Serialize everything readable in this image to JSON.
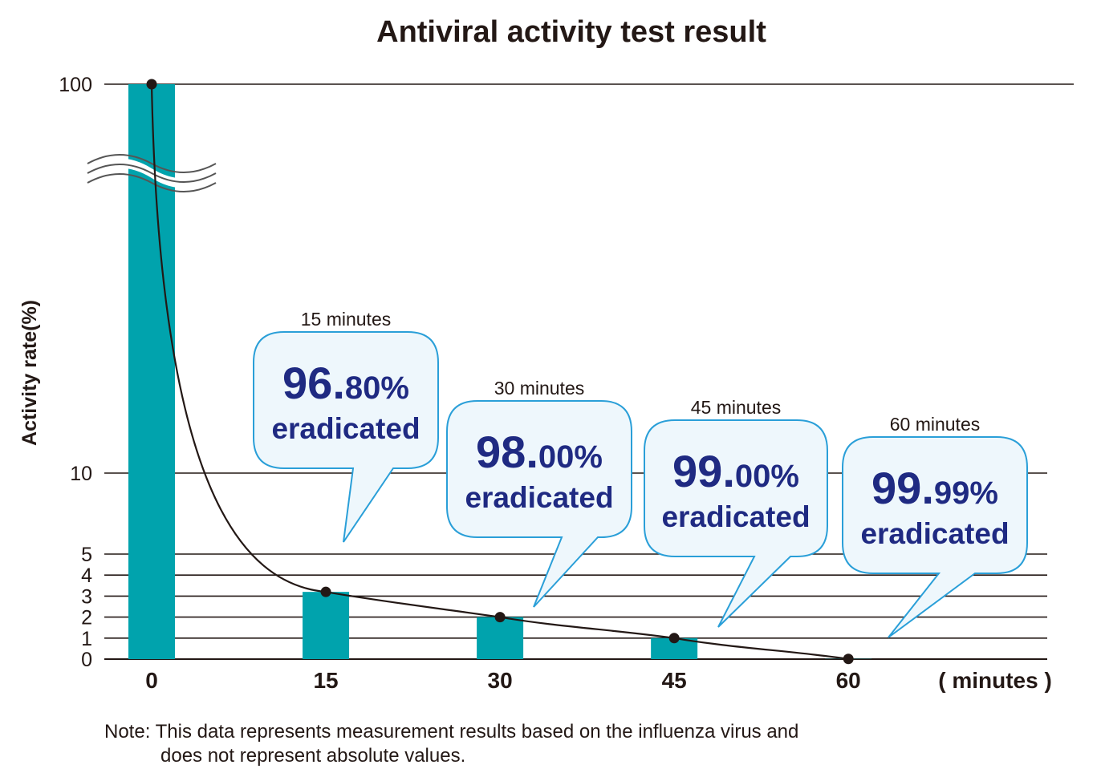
{
  "chart_data": {
    "type": "bar",
    "title": "Antiviral activity test result",
    "ylabel": "Activity rate(%)",
    "xunit_label": "( minutes )",
    "categories": [
      "0",
      "15",
      "30",
      "45",
      "60"
    ],
    "x": [
      0,
      15,
      30,
      45,
      60
    ],
    "values": [
      100,
      3.2,
      2.0,
      1.0,
      0.01
    ],
    "y_ticks": [
      "0",
      "1",
      "2",
      "3",
      "4",
      "5",
      "10",
      "100"
    ],
    "axis_break": true,
    "bar_color": "#00a3ad",
    "line_color": "#231815",
    "callouts": [
      {
        "label": "15 minutes",
        "percent_main": "96.",
        "percent_dec": "80%",
        "text": "eradicated"
      },
      {
        "label": "30 minutes",
        "percent_main": "98.",
        "percent_dec": "00%",
        "text": "eradicated"
      },
      {
        "label": "45 minutes",
        "percent_main": "99.",
        "percent_dec": "00%",
        "text": "eradicated"
      },
      {
        "label": "60 minutes",
        "percent_main": "99.",
        "percent_dec": "99%",
        "text": "eradicated"
      }
    ],
    "note_line1": "Note: This data represents measurement results based on the influenza virus and",
    "note_line2": "does not represent absolute values.",
    "callout_fill": "#eef7fc",
    "callout_stroke": "#2a9fd8",
    "callout_text_color": "#1f2a82"
  }
}
